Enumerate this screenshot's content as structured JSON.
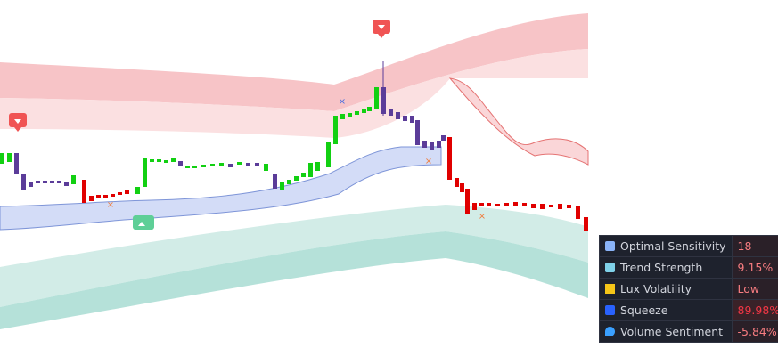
{
  "table": {
    "rows": [
      {
        "label": "Optimal Sensitivity",
        "value": "18"
      },
      {
        "label": "Trend Strength",
        "value": "9.15%"
      },
      {
        "label": "Lux Volatility",
        "value": "Low"
      },
      {
        "label": "Squeeze",
        "value": "89.98%"
      },
      {
        "label": "Volume Sentiment",
        "value": "-5.84%"
      }
    ]
  }
}
